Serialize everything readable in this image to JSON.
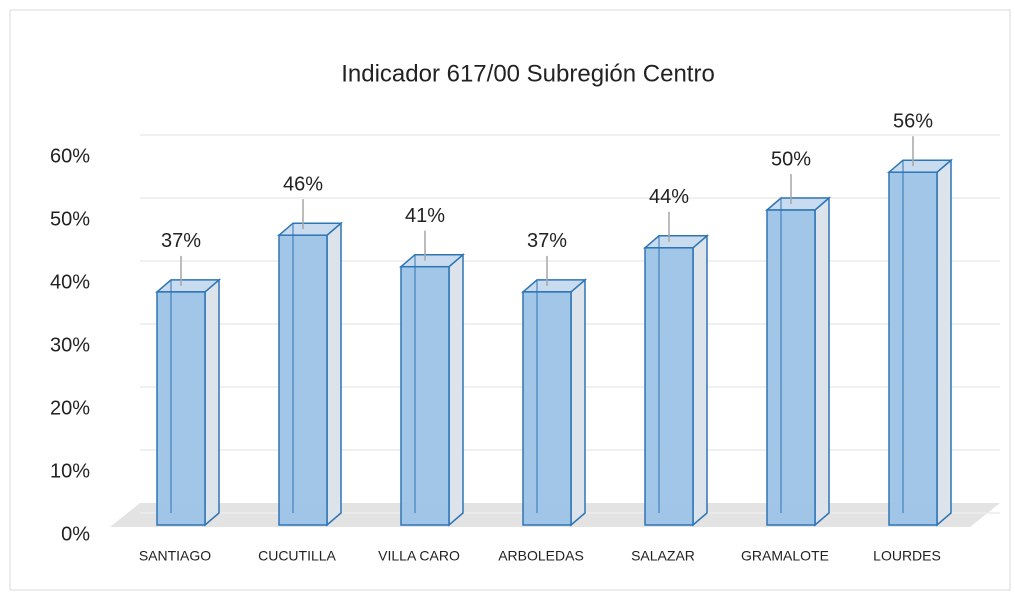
{
  "chart_data": {
    "type": "bar3d",
    "title": "Indicador 617/00 Subregión Centro",
    "categories": [
      "SANTIAGO",
      "CUCUTILLA",
      "VILLA CARO",
      "ARBOLEDAS",
      "SALAZAR",
      "GRAMALOTE",
      "LOURDES"
    ],
    "values": [
      37,
      46,
      41,
      37,
      44,
      50,
      56
    ],
    "value_labels": [
      "37%",
      "46%",
      "41%",
      "37%",
      "44%",
      "50%",
      "56%"
    ],
    "color": "#9dc3e6",
    "ylim": [
      0,
      60
    ],
    "yticks": [
      {
        "value": 0,
        "label": "0%"
      },
      {
        "value": 10,
        "label": "10%"
      },
      {
        "value": 20,
        "label": "20%"
      },
      {
        "value": 30,
        "label": "30%"
      },
      {
        "value": 40,
        "label": "40%"
      },
      {
        "value": 50,
        "label": "50%"
      },
      {
        "value": 60,
        "label": "60%"
      }
    ],
    "grid": true
  }
}
